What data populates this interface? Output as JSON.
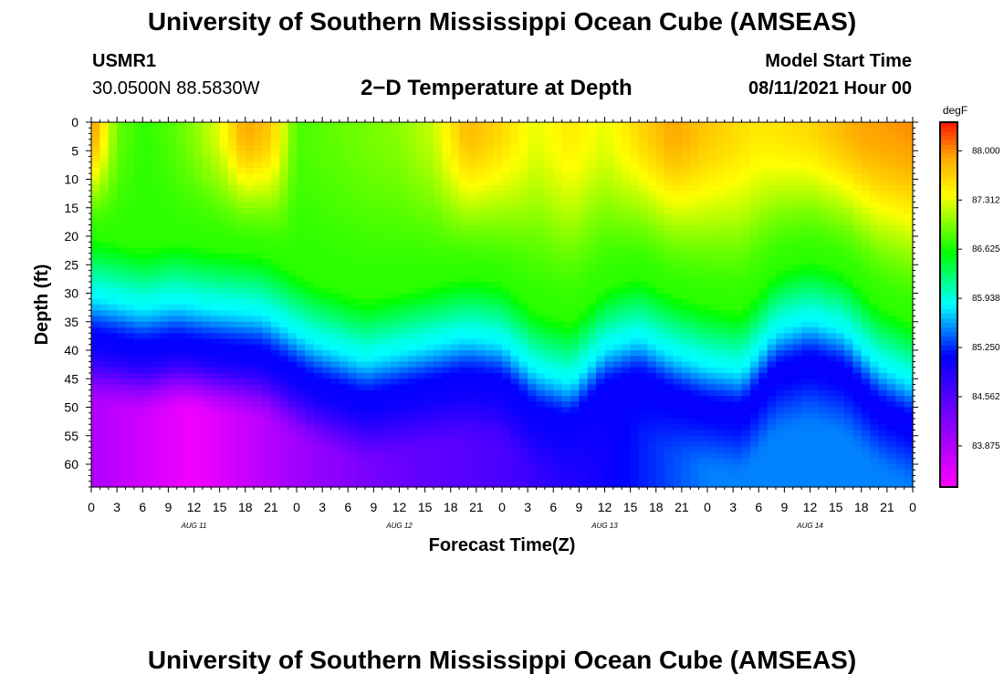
{
  "header": {
    "title": "University of Southern Mississippi Ocean Cube (AMSEAS)",
    "station": "USMR1",
    "coordinates": "30.0500N  88.5830W",
    "plot_title": "2−D Temperature at Depth",
    "model_start_label": "Model Start Time",
    "model_start_value": "08/11/2021 Hour 00"
  },
  "footer": {
    "title": "University of Southern Mississippi Ocean Cube (AMSEAS)"
  },
  "chart_data": {
    "type": "heatmap",
    "title": "2−D Temperature at Depth",
    "xlabel": "Forecast Time(Z)",
    "ylabel": "Depth (ft)",
    "x_range_hours": [
      0,
      96
    ],
    "y_range_ft": [
      0,
      64
    ],
    "x_tick_step_hours": 3,
    "x_tick_labels": [
      "0",
      "3",
      "6",
      "9",
      "12",
      "15",
      "18",
      "21",
      "0",
      "3",
      "6",
      "9",
      "12",
      "15",
      "18",
      "21",
      "0",
      "3",
      "6",
      "9",
      "12",
      "15",
      "18",
      "21",
      "0",
      "3",
      "6",
      "9",
      "12",
      "15",
      "18",
      "21",
      "0"
    ],
    "date_labels": [
      {
        "hour": 12,
        "label": "AUG 11"
      },
      {
        "hour": 36,
        "label": "AUG 12"
      },
      {
        "hour": 60,
        "label": "AUG 13"
      },
      {
        "hour": 84,
        "label": "AUG 14"
      }
    ],
    "y_ticks": [
      0,
      5,
      10,
      15,
      20,
      25,
      30,
      35,
      40,
      45,
      50,
      55,
      60
    ],
    "colorbar": {
      "unit": "degF",
      "min": 83.3,
      "max": 88.4,
      "tick_values": [
        88.0,
        87.312,
        86.625,
        85.938,
        85.25,
        84.562,
        83.875
      ],
      "tick_labels": [
        "88.000",
        "87.312",
        "86.625",
        "85.938",
        "85.250",
        "84.562",
        "83.875"
      ]
    },
    "surface_temp_degF": [
      {
        "hour": 0,
        "value": 88.0
      },
      {
        "hour": 3,
        "value": 86.9
      },
      {
        "hour": 6,
        "value": 86.7
      },
      {
        "hour": 9,
        "value": 86.8
      },
      {
        "hour": 12,
        "value": 87.0
      },
      {
        "hour": 15,
        "value": 87.3
      },
      {
        "hour": 18,
        "value": 87.9
      },
      {
        "hour": 21,
        "value": 87.7
      },
      {
        "hour": 24,
        "value": 86.8
      },
      {
        "hour": 30,
        "value": 86.9
      },
      {
        "hour": 36,
        "value": 87.0
      },
      {
        "hour": 40,
        "value": 87.2
      },
      {
        "hour": 44,
        "value": 87.8
      },
      {
        "hour": 48,
        "value": 87.6
      },
      {
        "hour": 52,
        "value": 87.3
      },
      {
        "hour": 56,
        "value": 87.5
      },
      {
        "hour": 60,
        "value": 87.3
      },
      {
        "hour": 64,
        "value": 87.6
      },
      {
        "hour": 68,
        "value": 87.9
      },
      {
        "hour": 72,
        "value": 87.7
      },
      {
        "hour": 78,
        "value": 87.5
      },
      {
        "hour": 84,
        "value": 87.6
      },
      {
        "hour": 90,
        "value": 87.9
      },
      {
        "hour": 96,
        "value": 88.0
      }
    ],
    "thermocline_depth_ft": [
      {
        "hour": 0,
        "value": 29
      },
      {
        "hour": 6,
        "value": 31
      },
      {
        "hour": 10,
        "value": 30
      },
      {
        "hour": 14,
        "value": 31
      },
      {
        "hour": 20,
        "value": 32
      },
      {
        "hour": 26,
        "value": 37
      },
      {
        "hour": 32,
        "value": 40
      },
      {
        "hour": 38,
        "value": 38
      },
      {
        "hour": 44,
        "value": 36
      },
      {
        "hour": 48,
        "value": 37
      },
      {
        "hour": 52,
        "value": 42
      },
      {
        "hour": 56,
        "value": 44
      },
      {
        "hour": 60,
        "value": 38
      },
      {
        "hour": 64,
        "value": 36
      },
      {
        "hour": 68,
        "value": 39
      },
      {
        "hour": 72,
        "value": 41
      },
      {
        "hour": 76,
        "value": 42
      },
      {
        "hour": 80,
        "value": 35
      },
      {
        "hour": 84,
        "value": 33
      },
      {
        "hour": 88,
        "value": 35
      },
      {
        "hour": 92,
        "value": 41
      },
      {
        "hour": 96,
        "value": 44
      }
    ],
    "bottom_temp_degF": [
      {
        "hour": 0,
        "value": 83.9
      },
      {
        "hour": 12,
        "value": 83.4
      },
      {
        "hour": 24,
        "value": 84.0
      },
      {
        "hour": 36,
        "value": 84.4
      },
      {
        "hour": 48,
        "value": 84.6
      },
      {
        "hour": 56,
        "value": 84.9
      },
      {
        "hour": 64,
        "value": 85.2
      },
      {
        "hour": 72,
        "value": 85.5
      },
      {
        "hour": 84,
        "value": 85.5
      },
      {
        "hour": 96,
        "value": 85.5
      }
    ]
  }
}
